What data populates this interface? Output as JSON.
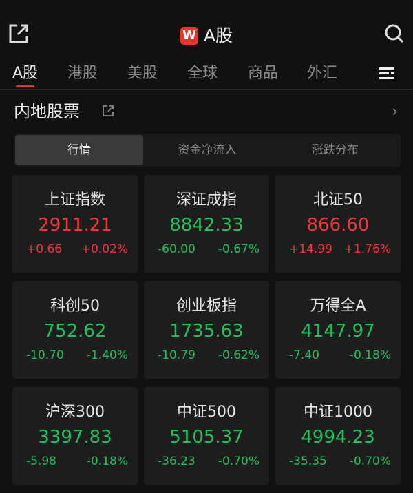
{
  "header": {
    "title": "A股",
    "logo": "W"
  },
  "tabs": [
    "A股",
    "港股",
    "美股",
    "全球",
    "商品",
    "外汇"
  ],
  "section": {
    "title": "内地股票"
  },
  "segments": [
    "行情",
    "资金净流入",
    "涨跌分布"
  ],
  "colors": {
    "up": "#f0353c",
    "down": "#22c05c",
    "accent": "#e8352a"
  },
  "indices": [
    {
      "name": "上证指数",
      "price": "2911.21",
      "change": "+0.66",
      "pct": "+0.02%",
      "dir": "up"
    },
    {
      "name": "深证成指",
      "price": "8842.33",
      "change": "-60.00",
      "pct": "-0.67%",
      "dir": "dn"
    },
    {
      "name": "北证50",
      "price": "866.60",
      "change": "+14.99",
      "pct": "+1.76%",
      "dir": "up"
    },
    {
      "name": "科创50",
      "price": "752.62",
      "change": "-10.70",
      "pct": "-1.40%",
      "dir": "dn"
    },
    {
      "name": "创业板指",
      "price": "1735.63",
      "change": "-10.79",
      "pct": "-0.62%",
      "dir": "dn"
    },
    {
      "name": "万得全A",
      "price": "4147.97",
      "change": "-7.40",
      "pct": "-0.18%",
      "dir": "dn"
    },
    {
      "name": "沪深300",
      "price": "3397.83",
      "change": "-5.98",
      "pct": "-0.18%",
      "dir": "dn"
    },
    {
      "name": "中证500",
      "price": "5105.37",
      "change": "-36.23",
      "pct": "-0.70%",
      "dir": "dn"
    },
    {
      "name": "中证1000",
      "price": "4994.23",
      "change": "-35.35",
      "pct": "-0.70%",
      "dir": "dn"
    }
  ]
}
